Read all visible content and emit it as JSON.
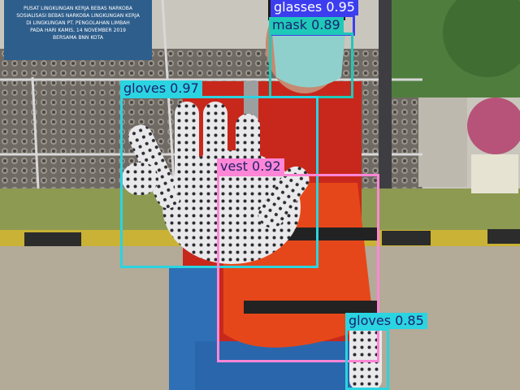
{
  "banner": {
    "lines": [
      "PUSAT LINGKUNGAN KERJA BEBAS NARKOBA",
      "SOSIALISASI BEBAS NARKOBA LINGKUNGAN KERJA",
      "DI LINGKUNGAN PT. PENGOLAHAN LIMBAH",
      "PADA HARI KAMIS, 14 NOVEMBER 2019",
      "BERSAMA BNN KOTA"
    ]
  },
  "detections": [
    {
      "label": "glasses 0.95",
      "color": "#3d3df0",
      "text_color": "#ffffff"
    },
    {
      "label": "mask 0.89",
      "color": "#1fc9b8",
      "text_color": "#1f1f6e"
    },
    {
      "label": "gloves 0.97",
      "color": "#2ad4e0",
      "text_color": "#1f1f6e"
    },
    {
      "label": "vest 0.92",
      "color": "#ff86d6",
      "text_color": "#1f1f6e"
    },
    {
      "label": "gloves 0.85",
      "color": "#2ad4e0",
      "text_color": "#1f1f6e"
    }
  ]
}
